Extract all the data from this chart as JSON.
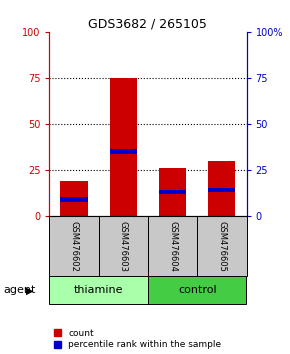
{
  "title": "GDS3682 / 265105",
  "samples": [
    "GSM476602",
    "GSM476603",
    "GSM476604",
    "GSM476605"
  ],
  "red_values": [
    19,
    75,
    26,
    30
  ],
  "blue_values": [
    9,
    35,
    13,
    14
  ],
  "blue_thickness": 2.5,
  "ylim": [
    0,
    100
  ],
  "yticks": [
    0,
    25,
    50,
    75,
    100
  ],
  "left_axis_color": "#CC0000",
  "right_axis_color": "#0000CC",
  "bar_red_color": "#CC0000",
  "bar_blue_color": "#0000CC",
  "bar_width": 0.55,
  "background_color": "#ffffff",
  "gray_section_color": "#C8C8C8",
  "thiamine_color": "#AAFFAA",
  "control_color": "#44CC44",
  "legend_count_label": "count",
  "legend_pct_label": "percentile rank within the sample",
  "agent_label": "agent",
  "grid_ticks": [
    25,
    50,
    75
  ],
  "group_configs": [
    {
      "indices": [
        0,
        1
      ],
      "label": "thiamine",
      "color": "#AAFFAA"
    },
    {
      "indices": [
        2,
        3
      ],
      "label": "control",
      "color": "#44CC44"
    }
  ]
}
